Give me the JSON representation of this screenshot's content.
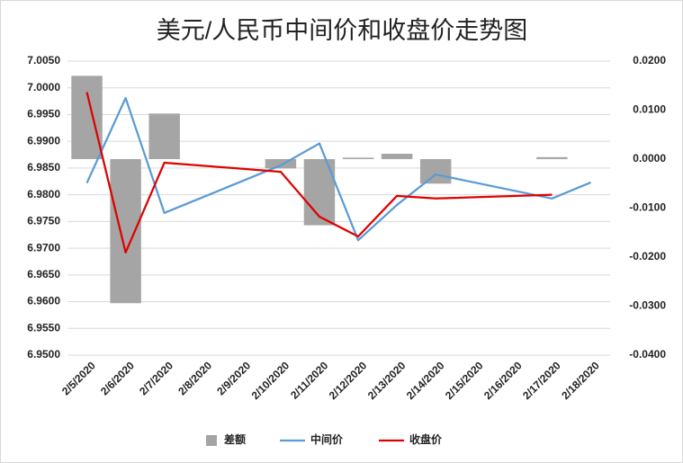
{
  "chart_data": {
    "type": "combo",
    "title": "美元/人民币中间价和收盘价走势图",
    "categories": [
      "2/5/2020",
      "2/6/2020",
      "2/7/2020",
      "2/8/2020",
      "2/9/2020",
      "2/10/2020",
      "2/11/2020",
      "2/12/2020",
      "2/13/2020",
      "2/14/2020",
      "2/15/2020",
      "2/16/2020",
      "2/17/2020",
      "2/18/2020"
    ],
    "series": [
      {
        "name": "差额",
        "kind": "bar",
        "axis": "y2",
        "color": "#a5a5a5",
        "values": [
          0.017,
          -0.0294,
          0.0093,
          null,
          null,
          -0.0019,
          -0.0135,
          0.0003,
          0.0011,
          -0.005,
          null,
          null,
          0.0004,
          null
        ]
      },
      {
        "name": "中间价",
        "kind": "line",
        "color": "#5b9bd5",
        "values": [
          6.9822,
          6.9981,
          6.9766,
          null,
          null,
          6.9855,
          6.9896,
          6.9715,
          6.9781,
          6.9838,
          null,
          null,
          6.9793,
          6.9823
        ]
      },
      {
        "name": "收盘价",
        "kind": "line",
        "color": "#e00000",
        "values": [
          6.9992,
          6.9692,
          6.986,
          null,
          null,
          6.9843,
          6.9759,
          6.9722,
          6.9798,
          6.9793,
          null,
          null,
          6.98,
          null
        ]
      }
    ],
    "connect_gaps": true,
    "ylim": [
      6.95,
      7.005
    ],
    "yticks": [
      {
        "value": 6.95,
        "label": "6.9500"
      },
      {
        "value": 6.955,
        "label": "6.9550"
      },
      {
        "value": 6.96,
        "label": "6.9600"
      },
      {
        "value": 6.965,
        "label": "6.9650"
      },
      {
        "value": 6.97,
        "label": "6.9700"
      },
      {
        "value": 6.975,
        "label": "6.9750"
      },
      {
        "value": 6.98,
        "label": "6.9800"
      },
      {
        "value": 6.985,
        "label": "6.9850"
      },
      {
        "value": 6.99,
        "label": "6.9900"
      },
      {
        "value": 6.995,
        "label": "6.9950"
      },
      {
        "value": 7.0,
        "label": "7.0000"
      },
      {
        "value": 7.005,
        "label": "7.0050"
      }
    ],
    "y2lim": [
      -0.04,
      0.02
    ],
    "y2ticks": [
      {
        "value": -0.04,
        "label": "-0.0400"
      },
      {
        "value": -0.03,
        "label": "-0.0300"
      },
      {
        "value": -0.02,
        "label": "-0.0200"
      },
      {
        "value": -0.01,
        "label": "-0.0100"
      },
      {
        "value": 0,
        "label": "0.0000"
      },
      {
        "value": 0.01,
        "label": "0.0100"
      },
      {
        "value": 0.02,
        "label": "0.0200"
      }
    ],
    "grid": true,
    "legend": "bottom"
  }
}
